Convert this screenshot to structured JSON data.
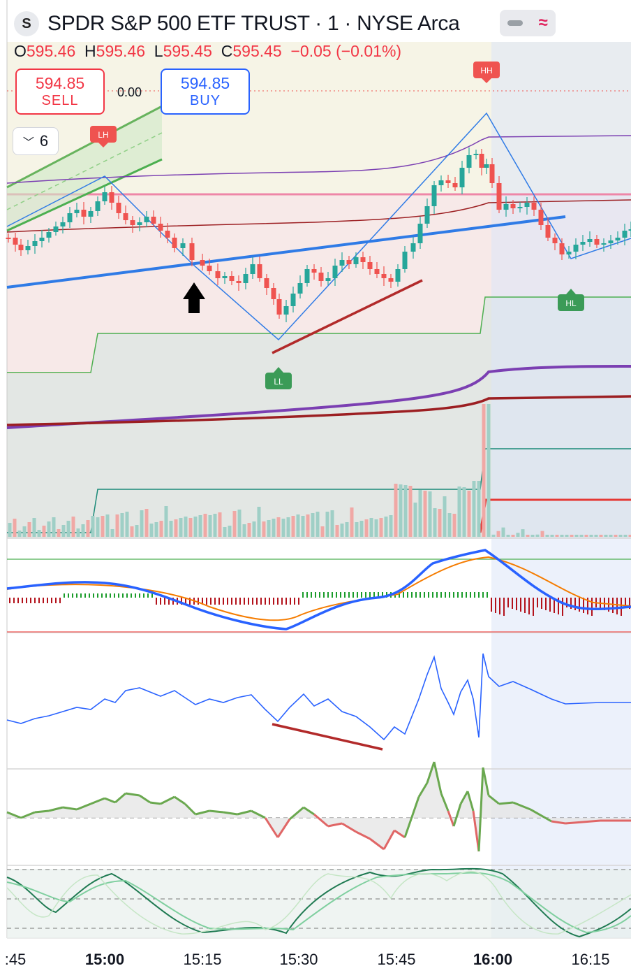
{
  "header": {
    "logo_letter": "S",
    "title": "SPDR S&P 500 ETF TRUST · 1 · NYSE Arca",
    "ohlc": {
      "o_key": "O",
      "o": "595.46",
      "h_key": "H",
      "h": "595.46",
      "l_key": "L",
      "l": "595.45",
      "c_key": "C",
      "c": "595.45",
      "change": "−0.05 (−0.01%)"
    },
    "toggle_icon": "wave-icon"
  },
  "trade": {
    "sell_price": "594.85",
    "sell_label": "SELL",
    "buy_price": "594.85",
    "buy_label": "BUY",
    "spread": "0.00"
  },
  "interval_selector": {
    "value": "6",
    "icon": "chevron-down-icon"
  },
  "markers": {
    "hh": "HH",
    "lh": "LH",
    "ll": "LL",
    "hl": "HL"
  },
  "colors": {
    "up": "#26a69a",
    "down": "#ef5350",
    "trendline": "#2f7be6",
    "divergence": "#b22a2a",
    "vwap_purple": "#7b3fb2",
    "vwap_red": "#9c1f22",
    "session_shade": "#dde6f7"
  },
  "chart_data": {
    "type": "candlestick",
    "symbol": "SPDR S&P 500 ETF TRUST",
    "exchange": "NYSE Arca",
    "interval": "1",
    "x_ticks": [
      ":45",
      "15:00",
      "15:15",
      "15:30",
      "15:45",
      "16:00",
      "16:15"
    ],
    "bold_ticks": [
      "15:00",
      "16:00"
    ],
    "last_ohlc": {
      "open": 595.46,
      "high": 595.46,
      "low": 595.45,
      "close": 595.45,
      "change": -0.05,
      "change_pct": -0.01
    },
    "bid": 594.85,
    "ask": 594.85,
    "swing_labels": [
      "LH",
      "LL",
      "HH",
      "HL"
    ],
    "panes": [
      "price+volume",
      "macd",
      "oscillator",
      "oscillator-2",
      "stochastic"
    ]
  }
}
